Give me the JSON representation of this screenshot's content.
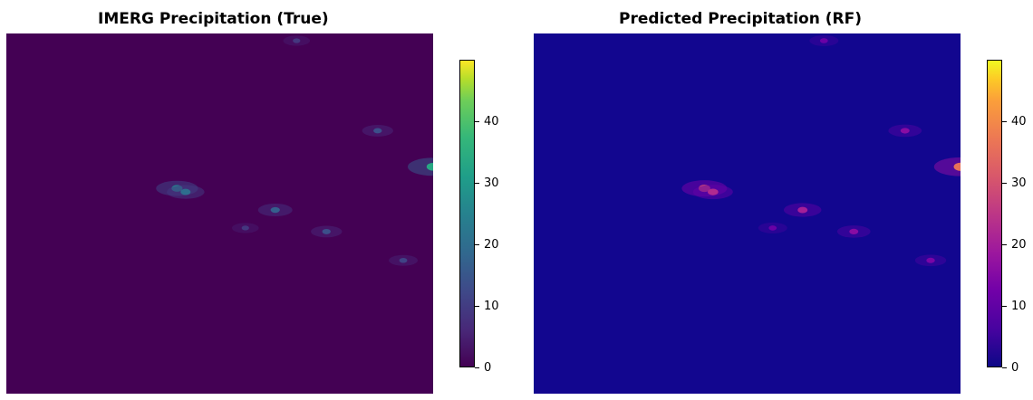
{
  "chart_data": [
    {
      "type": "heatmap",
      "title": "IMERG Precipitation (True)",
      "colormap": "viridis",
      "colorbar": {
        "min": 0,
        "max": 50,
        "ticks": [
          0,
          10,
          20,
          30,
          40
        ]
      },
      "background_color": "#440154",
      "rain_cells": [
        {
          "x": 0.4,
          "y": 0.43,
          "value": 22
        },
        {
          "x": 0.42,
          "y": 0.44,
          "value": 18
        },
        {
          "x": 0.63,
          "y": 0.49,
          "value": 15
        },
        {
          "x": 0.75,
          "y": 0.55,
          "value": 12
        },
        {
          "x": 1.0,
          "y": 0.37,
          "value": 30
        },
        {
          "x": 0.87,
          "y": 0.27,
          "value": 12
        },
        {
          "x": 0.56,
          "y": 0.54,
          "value": 8
        },
        {
          "x": 0.93,
          "y": 0.63,
          "value": 10
        },
        {
          "x": 0.68,
          "y": 0.02,
          "value": 8
        }
      ]
    },
    {
      "type": "heatmap",
      "title": "Predicted Precipitation (RF)",
      "colormap": "plasma",
      "colorbar": {
        "min": 0,
        "max": 50,
        "ticks": [
          0,
          10,
          20,
          30,
          40
        ]
      },
      "background_color": "#12068f",
      "rain_cells": [
        {
          "x": 0.4,
          "y": 0.43,
          "value": 25
        },
        {
          "x": 0.42,
          "y": 0.44,
          "value": 20
        },
        {
          "x": 0.63,
          "y": 0.49,
          "value": 18
        },
        {
          "x": 0.75,
          "y": 0.55,
          "value": 14
        },
        {
          "x": 1.0,
          "y": 0.37,
          "value": 32
        },
        {
          "x": 0.87,
          "y": 0.27,
          "value": 14
        },
        {
          "x": 0.56,
          "y": 0.54,
          "value": 10
        },
        {
          "x": 0.93,
          "y": 0.63,
          "value": 12
        },
        {
          "x": 0.68,
          "y": 0.02,
          "value": 10
        }
      ]
    }
  ]
}
